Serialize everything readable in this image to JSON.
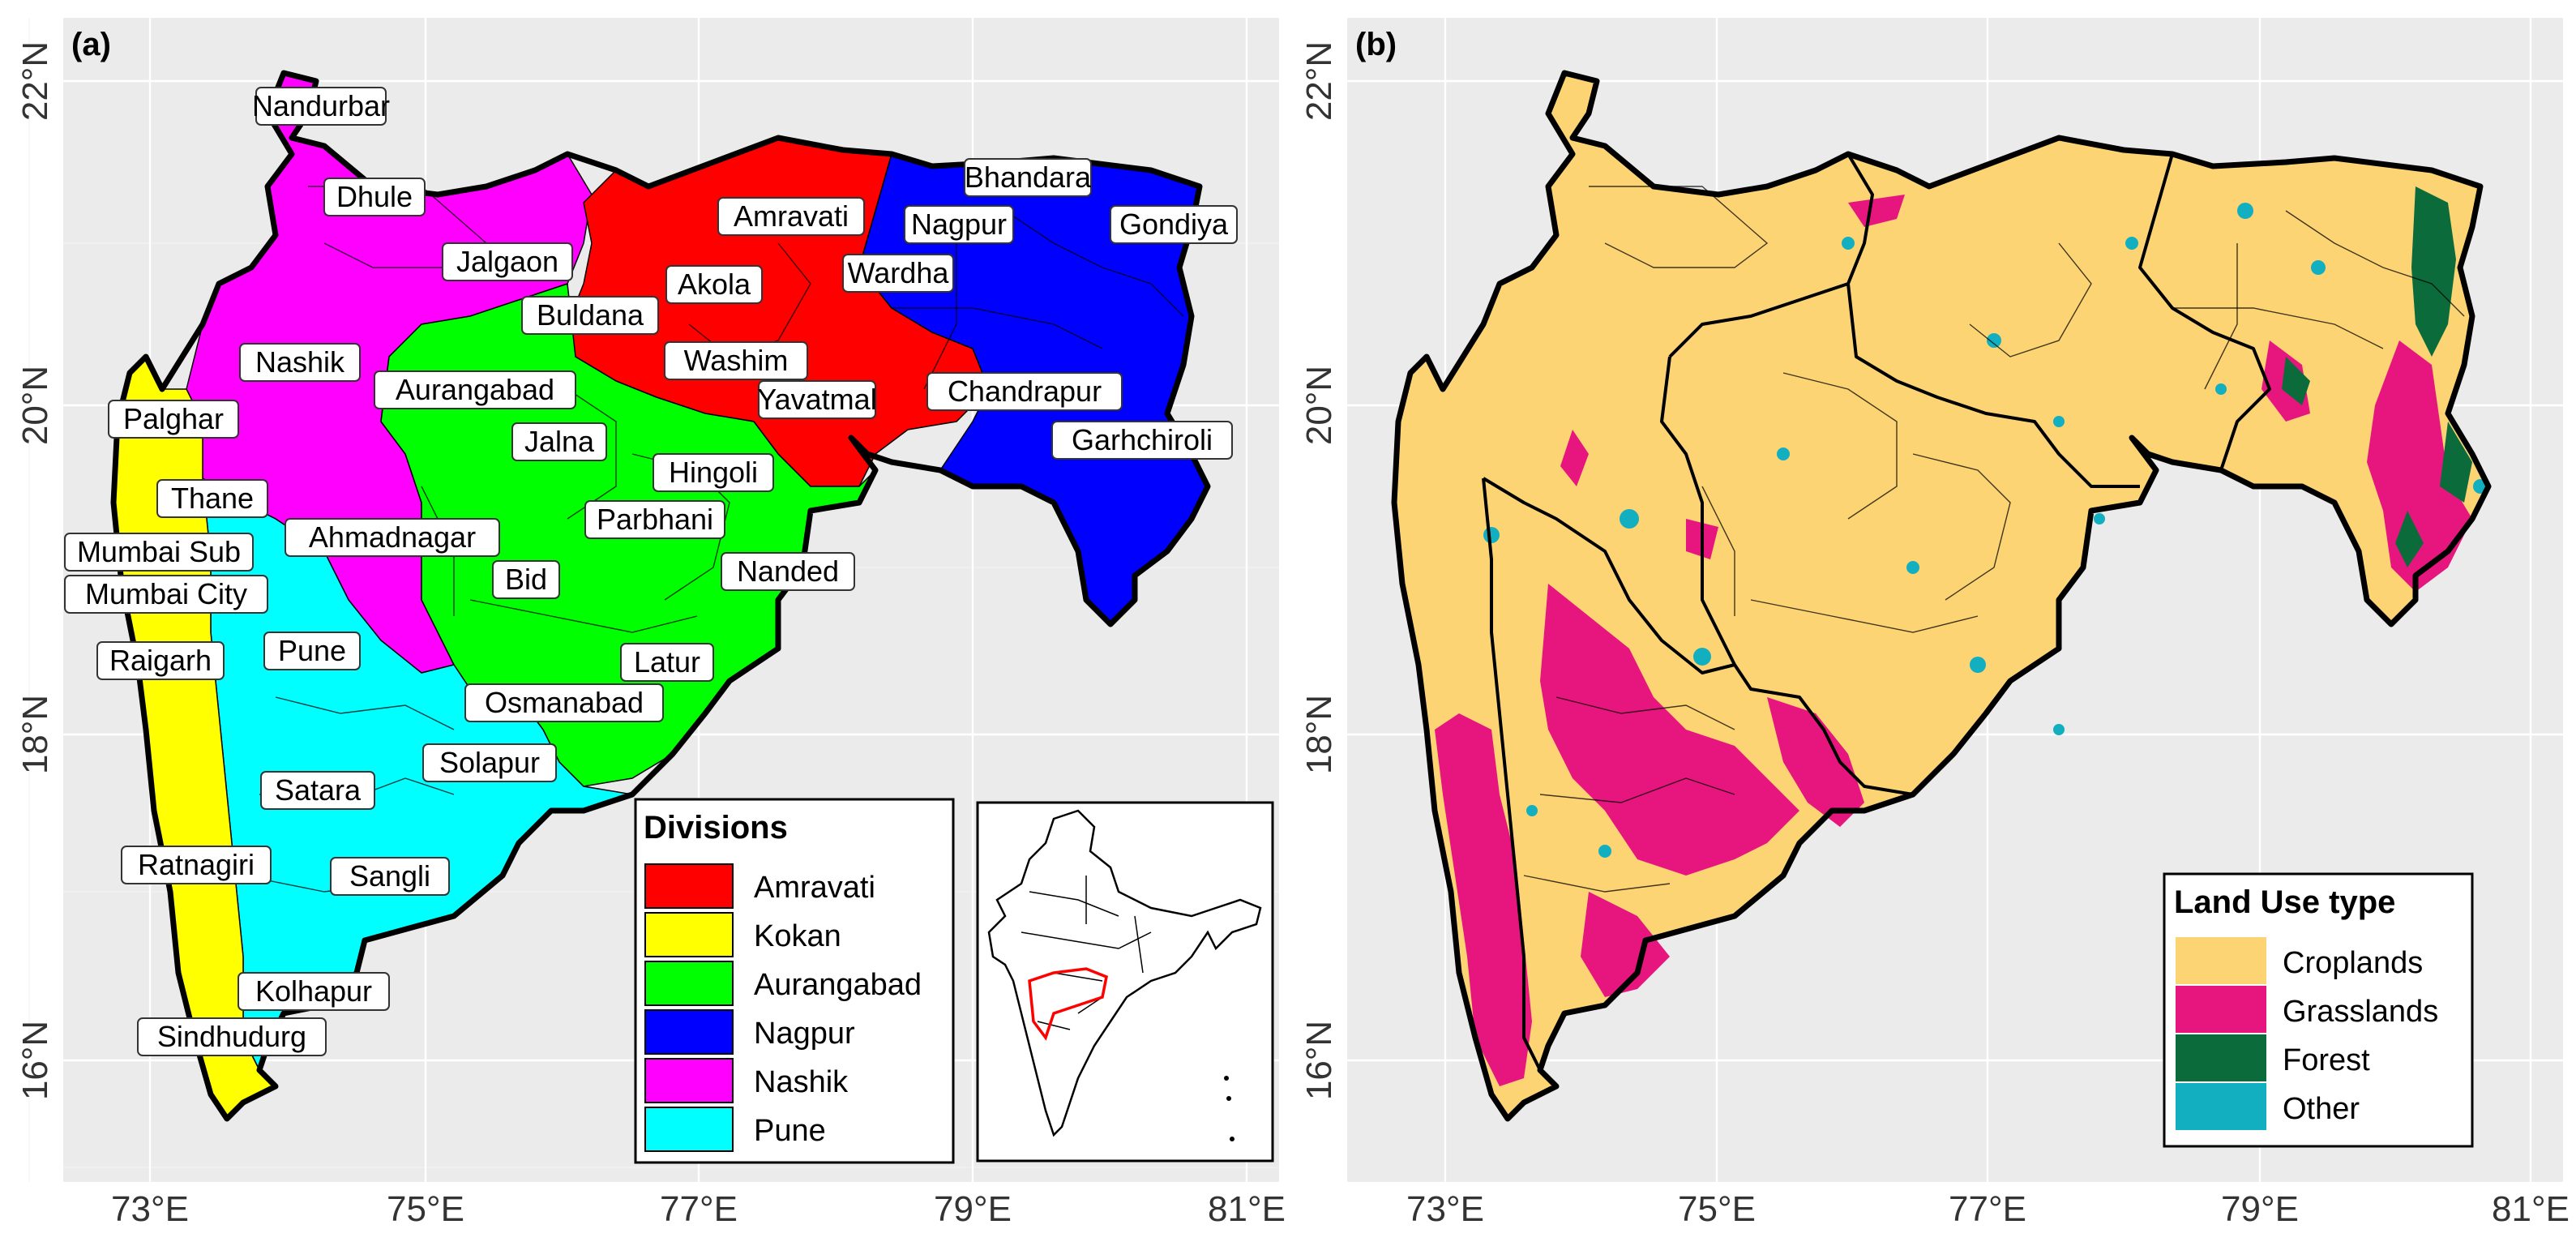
{
  "panel_a": {
    "tag": "(a)",
    "legend_title": "Divisions",
    "divisions": [
      {
        "name": "Amravati",
        "color": "#ff0000"
      },
      {
        "name": "Kokan",
        "color": "#ffff00"
      },
      {
        "name": "Aurangabad",
        "color": "#00ff00"
      },
      {
        "name": "Nagpur",
        "color": "#0000ff"
      },
      {
        "name": "Nashik",
        "color": "#ff00ff"
      },
      {
        "name": "Pune",
        "color": "#00ffff"
      }
    ],
    "districts": [
      "Nandurbar",
      "Dhule",
      "Jalgaon",
      "Amravati",
      "Bhandara",
      "Nagpur",
      "Gondiya",
      "Akola",
      "Wardha",
      "Buldana",
      "Nashik",
      "Washim",
      "Aurangabad",
      "Yavatmal",
      "Chandrapur",
      "Palghar",
      "Jalna",
      "Garhchiroli",
      "Thane",
      "Hingoli",
      "Ahmadnagar",
      "Parbhani",
      "Mumbai Sub",
      "Bid",
      "Nanded",
      "Mumbai City",
      "Pune",
      "Raigarh",
      "Latur",
      "Osmanabad",
      "Solapur",
      "Satara",
      "Ratnagiri",
      "Sangli",
      "Kolhapur",
      "Sindhudurg"
    ]
  },
  "panel_b": {
    "tag": "(b)",
    "legend_title": "Land Use type",
    "classes": [
      {
        "name": "Croplands",
        "color": "#fcd474"
      },
      {
        "name": "Grasslands",
        "color": "#e6167e"
      },
      {
        "name": "Forest",
        "color": "#0b6b3a"
      },
      {
        "name": "Other",
        "color": "#11afc0"
      }
    ]
  },
  "axes": {
    "x_ticks": [
      "73°E",
      "75°E",
      "77°E",
      "79°E",
      "81°E"
    ],
    "y_ticks": [
      "22°N",
      "20°N",
      "18°N",
      "16°N"
    ]
  }
}
